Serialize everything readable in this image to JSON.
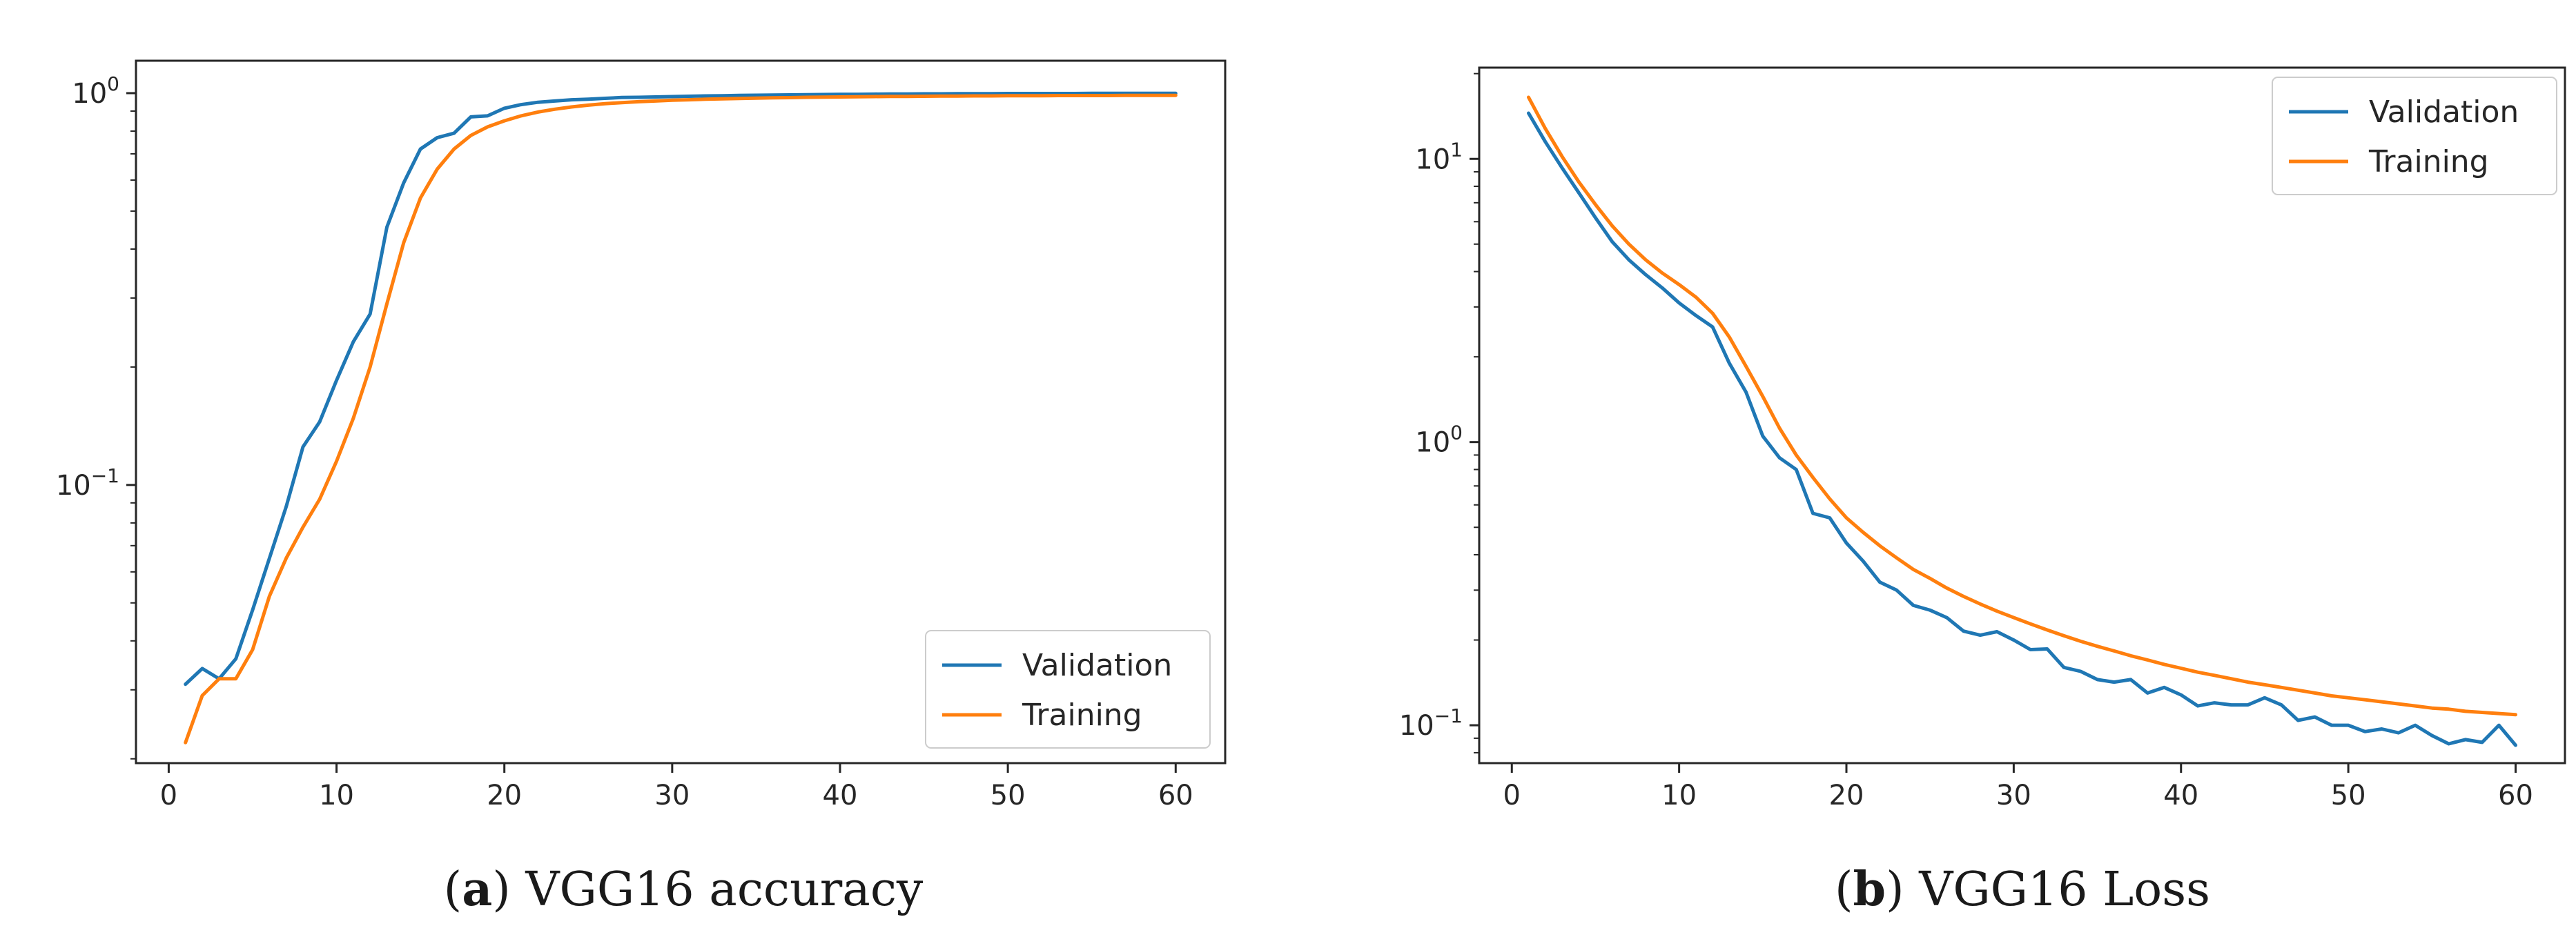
{
  "chart_data": [
    {
      "type": "line",
      "title": "",
      "caption": {
        "letter": "a",
        "text": "VGG16 accuracy"
      },
      "xlabel": "",
      "ylabel": "",
      "yscale": "log",
      "xlim": [
        -1.95,
        62.95
      ],
      "ylim": [
        0.0195,
        1.21
      ],
      "xticks": [
        {
          "value": 0,
          "label": "0"
        },
        {
          "value": 10,
          "label": "10"
        },
        {
          "value": 20,
          "label": "20"
        },
        {
          "value": 30,
          "label": "30"
        },
        {
          "value": 40,
          "label": "40"
        },
        {
          "value": 50,
          "label": "50"
        },
        {
          "value": 60,
          "label": "60"
        }
      ],
      "yticks": [
        {
          "value": 1,
          "base": "10",
          "exp": "0"
        },
        {
          "value": 0.1,
          "base": "10",
          "exp": "−1"
        }
      ],
      "legend": {
        "position": "lower-right",
        "entries": [
          "Validation",
          "Training"
        ]
      },
      "series": [
        {
          "name": "Validation",
          "color": "#1f77b4",
          "x": [
            1,
            2,
            3,
            4,
            5,
            6,
            7,
            8,
            9,
            10,
            11,
            12,
            13,
            14,
            15,
            16,
            17,
            18,
            19,
            20,
            21,
            22,
            23,
            24,
            25,
            26,
            27,
            28,
            29,
            30,
            31,
            32,
            33,
            34,
            35,
            36,
            37,
            38,
            39,
            40,
            41,
            42,
            43,
            44,
            45,
            46,
            47,
            48,
            49,
            50,
            51,
            52,
            53,
            54,
            55,
            56,
            57,
            58,
            59,
            60
          ],
          "values": [
            0.031,
            0.034,
            0.032,
            0.036,
            0.048,
            0.065,
            0.088,
            0.125,
            0.145,
            0.185,
            0.232,
            0.273,
            0.455,
            0.59,
            0.72,
            0.77,
            0.79,
            0.87,
            0.875,
            0.915,
            0.935,
            0.948,
            0.955,
            0.962,
            0.965,
            0.97,
            0.975,
            0.976,
            0.978,
            0.98,
            0.982,
            0.984,
            0.985,
            0.987,
            0.988,
            0.989,
            0.99,
            0.991,
            0.992,
            0.993,
            0.993,
            0.994,
            0.995,
            0.995,
            0.996,
            0.996,
            0.997,
            0.997,
            0.997,
            0.998,
            0.998,
            0.998,
            0.998,
            0.998,
            0.999,
            0.999,
            0.999,
            0.999,
            0.999,
            0.999
          ]
        },
        {
          "name": "Training",
          "color": "#ff7f0e",
          "x": [
            1,
            2,
            3,
            4,
            5,
            6,
            7,
            8,
            9,
            10,
            11,
            12,
            13,
            14,
            15,
            16,
            17,
            18,
            19,
            20,
            21,
            22,
            23,
            24,
            25,
            26,
            27,
            28,
            29,
            30,
            31,
            32,
            33,
            34,
            35,
            36,
            37,
            38,
            39,
            40,
            41,
            42,
            43,
            44,
            45,
            46,
            47,
            48,
            49,
            50,
            51,
            52,
            53,
            54,
            55,
            56,
            57,
            58,
            59,
            60
          ],
          "values": [
            0.022,
            0.029,
            0.032,
            0.032,
            0.038,
            0.052,
            0.065,
            0.078,
            0.092,
            0.115,
            0.148,
            0.2,
            0.29,
            0.415,
            0.54,
            0.64,
            0.72,
            0.78,
            0.82,
            0.85,
            0.875,
            0.895,
            0.91,
            0.922,
            0.932,
            0.94,
            0.946,
            0.951,
            0.955,
            0.959,
            0.962,
            0.965,
            0.967,
            0.969,
            0.971,
            0.973,
            0.974,
            0.976,
            0.977,
            0.978,
            0.979,
            0.98,
            0.981,
            0.981,
            0.982,
            0.983,
            0.983,
            0.984,
            0.984,
            0.985,
            0.985,
            0.985,
            0.986,
            0.986,
            0.986,
            0.986,
            0.987,
            0.987,
            0.987,
            0.987
          ]
        }
      ]
    },
    {
      "type": "line",
      "title": "",
      "caption": {
        "letter": "b",
        "text": "VGG16 Loss"
      },
      "xlabel": "",
      "ylabel": "",
      "yscale": "log",
      "xlim": [
        -1.95,
        62.95
      ],
      "ylim": [
        0.0735,
        21
      ],
      "xticks": [
        {
          "value": 0,
          "label": "0"
        },
        {
          "value": 10,
          "label": "10"
        },
        {
          "value": 20,
          "label": "20"
        },
        {
          "value": 30,
          "label": "30"
        },
        {
          "value": 40,
          "label": "40"
        },
        {
          "value": 50,
          "label": "50"
        },
        {
          "value": 60,
          "label": "60"
        }
      ],
      "yticks": [
        {
          "value": 10,
          "base": "10",
          "exp": "1"
        },
        {
          "value": 1,
          "base": "10",
          "exp": "0"
        },
        {
          "value": 0.1,
          "base": "10",
          "exp": "−1"
        }
      ],
      "legend": {
        "position": "upper-right",
        "entries": [
          "Validation",
          "Training"
        ]
      },
      "series": [
        {
          "name": "Validation",
          "color": "#1f77b4",
          "x": [
            1,
            2,
            3,
            4,
            5,
            6,
            7,
            8,
            9,
            10,
            11,
            12,
            13,
            14,
            15,
            16,
            17,
            18,
            19,
            20,
            21,
            22,
            23,
            24,
            25,
            26,
            27,
            28,
            29,
            30,
            31,
            32,
            33,
            34,
            35,
            36,
            37,
            38,
            39,
            40,
            41,
            42,
            43,
            44,
            45,
            46,
            47,
            48,
            49,
            50,
            51,
            52,
            53,
            54,
            55,
            56,
            57,
            58,
            59,
            60
          ],
          "values": [
            14.5,
            11.5,
            9.3,
            7.6,
            6.2,
            5.1,
            4.4,
            3.9,
            3.5,
            3.1,
            2.8,
            2.55,
            1.9,
            1.5,
            1.05,
            0.88,
            0.8,
            0.56,
            0.54,
            0.44,
            0.38,
            0.32,
            0.3,
            0.265,
            0.255,
            0.24,
            0.215,
            0.208,
            0.214,
            0.2,
            0.185,
            0.186,
            0.16,
            0.155,
            0.145,
            0.142,
            0.145,
            0.13,
            0.136,
            0.128,
            0.117,
            0.12,
            0.118,
            0.118,
            0.125,
            0.118,
            0.104,
            0.107,
            0.1,
            0.1,
            0.095,
            0.097,
            0.094,
            0.1,
            0.092,
            0.086,
            0.089,
            0.087,
            0.1,
            0.085
          ]
        },
        {
          "name": "Training",
          "color": "#ff7f0e",
          "x": [
            1,
            2,
            3,
            4,
            5,
            6,
            7,
            8,
            9,
            10,
            11,
            12,
            13,
            14,
            15,
            16,
            17,
            18,
            19,
            20,
            21,
            22,
            23,
            24,
            25,
            26,
            27,
            28,
            29,
            30,
            31,
            32,
            33,
            34,
            35,
            36,
            37,
            38,
            39,
            40,
            41,
            42,
            43,
            44,
            45,
            46,
            47,
            48,
            49,
            50,
            51,
            52,
            53,
            54,
            55,
            56,
            57,
            58,
            59,
            60
          ],
          "values": [
            16.5,
            12.8,
            10.2,
            8.3,
            6.9,
            5.8,
            5.0,
            4.4,
            3.95,
            3.6,
            3.25,
            2.85,
            2.35,
            1.85,
            1.45,
            1.12,
            0.9,
            0.75,
            0.63,
            0.54,
            0.48,
            0.43,
            0.39,
            0.355,
            0.33,
            0.305,
            0.285,
            0.268,
            0.253,
            0.24,
            0.228,
            0.217,
            0.207,
            0.198,
            0.19,
            0.183,
            0.176,
            0.17,
            0.164,
            0.159,
            0.154,
            0.15,
            0.146,
            0.142,
            0.139,
            0.136,
            0.133,
            0.13,
            0.127,
            0.125,
            0.123,
            0.121,
            0.119,
            0.117,
            0.115,
            0.114,
            0.112,
            0.111,
            0.11,
            0.109
          ]
        }
      ]
    }
  ]
}
